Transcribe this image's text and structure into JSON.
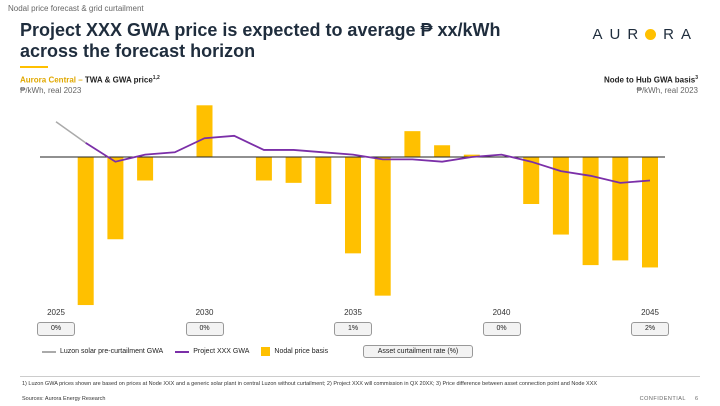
{
  "header": {
    "breadcrumb": "Nodal price forecast & grid curtailment",
    "title": "Project XXX GWA price is expected to average ₱ xx/kWh across the forecast horizon",
    "logo": {
      "left": "AUR",
      "right": "RA"
    }
  },
  "subtitle_left": {
    "accent": "Aurora Central",
    "sep": " – ",
    "text": "TWA & GWA price",
    "sup": "1,2",
    "unit": "₱/kWh, real 2023"
  },
  "subtitle_right": {
    "text": "Node to Hub GWA basis",
    "sup": "3",
    "unit": "₱/kWh, real 2023"
  },
  "colors": {
    "bar": "#ffc000",
    "gwa_line": "#7b2fa8",
    "luzon_line": "#aaaaaa",
    "accent": "#ffc000"
  },
  "chart_data": {
    "type": "bar",
    "x": [
      2025,
      2026,
      2027,
      2028,
      2029,
      2030,
      2031,
      2032,
      2033,
      2034,
      2035,
      2036,
      2037,
      2038,
      2039,
      2040,
      2041,
      2042,
      2043,
      2044,
      2045
    ],
    "tick_labels": [
      "2025",
      "2030",
      "2035",
      "2040",
      "2045"
    ],
    "tick_years": [
      2025,
      2030,
      2035,
      2040,
      2045
    ],
    "y_relative": true,
    "series": [
      {
        "name": "Nodal price basis",
        "kind": "bar",
        "values": [
          null,
          -6.3,
          -3.5,
          -1.0,
          null,
          2.2,
          null,
          -1.0,
          -1.1,
          -2.0,
          -4.1,
          -5.9,
          1.1,
          0.5,
          0.1,
          null,
          -2.0,
          -3.3,
          -4.6,
          -4.4,
          -4.7
        ]
      },
      {
        "name": "Project XXX GWA",
        "kind": "line",
        "x": [
          2026,
          2027,
          2028,
          2029,
          2030,
          2031,
          2032,
          2033,
          2034,
          2035,
          2036,
          2037,
          2038,
          2039,
          2040,
          2041,
          2042,
          2043,
          2044,
          2045
        ],
        "values": [
          0.6,
          -0.2,
          0.1,
          0.2,
          0.8,
          0.9,
          0.3,
          0.3,
          0.2,
          0.1,
          -0.1,
          -0.1,
          -0.2,
          0.0,
          0.1,
          -0.2,
          -0.6,
          -0.8,
          -1.1,
          -1.0
        ]
      },
      {
        "name": "Luzon solar pre-curtailment GWA",
        "kind": "line",
        "x": [
          2025,
          2026
        ],
        "values": [
          1.5,
          0.6
        ]
      }
    ],
    "asset_curtailment": [
      {
        "year": 2025,
        "label": "0%"
      },
      {
        "year": 2030,
        "label": "0%"
      },
      {
        "year": 2035,
        "label": "1%"
      },
      {
        "year": 2040,
        "label": "0%"
      },
      {
        "year": 2045,
        "label": "2%"
      }
    ]
  },
  "legend": {
    "luzon": "Luzon solar pre-curtailment GWA",
    "gwa": "Project XXX GWA",
    "bars": "Nodal price basis",
    "curtailment": "Asset curtailment rate (%)"
  },
  "footer": {
    "footnote": "1) Luzon GWA prices shown are based on prices at Node XXX and a generic solar plant in central Luzon without curtailment; 2)   Project XXX will commission in QX 20XX; 3) Price difference between asset connection point and Node XXX",
    "sources": "Sources: Aurora Energy Research",
    "confidential": "CONFIDENTIAL",
    "page": "6"
  }
}
